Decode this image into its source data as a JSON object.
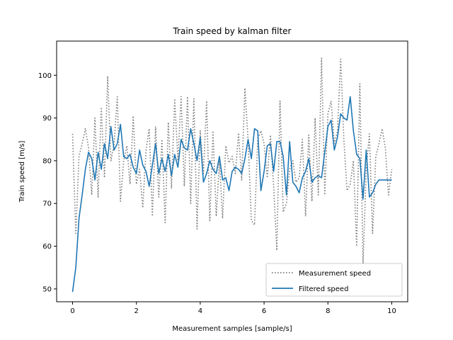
{
  "chart_data": {
    "type": "line",
    "title": "Train speed by kalman filter",
    "xlabel": "Measurement samples [sample/s]",
    "ylabel": "Train speed [m/s]",
    "xlim": [
      -0.5,
      10.5
    ],
    "ylim": [
      47,
      108
    ],
    "xticks": [
      0,
      2,
      4,
      6,
      8,
      10
    ],
    "yticks": [
      50,
      60,
      70,
      80,
      90,
      100
    ],
    "grid": false,
    "legend_position": "lower right",
    "x": [
      0.0,
      0.1,
      0.2,
      0.3,
      0.4,
      0.5,
      0.6,
      0.7,
      0.8,
      0.9,
      1.0,
      1.1,
      1.2,
      1.3,
      1.4,
      1.5,
      1.6,
      1.7,
      1.8,
      1.9,
      2.0,
      2.1,
      2.2,
      2.3,
      2.4,
      2.5,
      2.6,
      2.7,
      2.8,
      2.9,
      3.0,
      3.1,
      3.2,
      3.3,
      3.4,
      3.5,
      3.6,
      3.7,
      3.8,
      3.9,
      4.0,
      4.1,
      4.2,
      4.3,
      4.4,
      4.5,
      4.6,
      4.7,
      4.8,
      4.9,
      5.0,
      5.1,
      5.2,
      5.3,
      5.4,
      5.5,
      5.6,
      5.7,
      5.8,
      5.9,
      6.0,
      6.1,
      6.2,
      6.3,
      6.4,
      6.5,
      6.6,
      6.7,
      6.8,
      6.9,
      7.0,
      7.1,
      7.2,
      7.3,
      7.4,
      7.5,
      7.6,
      7.7,
      7.8,
      7.9,
      8.0,
      8.1,
      8.2,
      8.3,
      8.4,
      8.5,
      8.6,
      8.7,
      8.8,
      8.9,
      9.0,
      9.1,
      9.2,
      9.3,
      9.4,
      9.5,
      9.6,
      9.7,
      9.8,
      9.9,
      10.0
    ],
    "series": [
      {
        "name": "Measurement speed",
        "color": "#808080",
        "style": "dotted",
        "values": [
          86.3,
          63.0,
          81.0,
          84.0,
          87.5,
          83.0,
          72.0,
          90.0,
          71.5,
          92.5,
          76.0,
          99.8,
          80.0,
          84.0,
          95.0,
          70.5,
          80.0,
          83.5,
          74.5,
          90.5,
          74.5,
          78.0,
          69.0,
          82.5,
          87.5,
          67.0,
          88.0,
          71.5,
          85.0,
          65.5,
          89.0,
          73.5,
          94.5,
          80.0,
          95.0,
          74.0,
          95.0,
          70.0,
          94.5,
          64.0,
          87.0,
          77.0,
          94.0,
          66.0,
          87.0,
          67.0,
          80.0,
          66.5,
          83.5,
          79.5,
          81.0,
          77.0,
          86.5,
          75.5,
          97.0,
          85.0,
          66.0,
          65.0,
          85.0,
          87.0,
          84.0,
          76.0,
          86.0,
          74.0,
          59.0,
          94.0,
          68.0,
          70.0,
          78.0,
          80.0,
          75.0,
          76.0,
          85.0,
          67.0,
          86.0,
          70.5,
          90.0,
          72.0,
          104.0,
          72.0,
          91.0,
          94.0,
          84.0,
          87.0,
          103.8,
          85.0,
          73.0,
          74.5,
          80.0,
          60.0,
          98.0,
          56.0,
          78.0,
          86.3,
          63.0,
          81.0,
          84.0,
          87.5,
          83.0,
          72.0,
          78.0
        ]
      },
      {
        "name": "Filtered speed",
        "color": "#1f77b4",
        "style": "solid",
        "values": [
          49.3,
          55.0,
          66.5,
          72.0,
          78.0,
          82.0,
          80.5,
          75.5,
          82.0,
          78.0,
          84.0,
          80.5,
          88.0,
          82.5,
          84.0,
          88.5,
          81.0,
          80.5,
          81.5,
          78.5,
          77.0,
          82.5,
          79.0,
          77.5,
          74.0,
          79.0,
          84.0,
          77.0,
          80.5,
          77.5,
          81.5,
          76.5,
          81.5,
          78.5,
          85.0,
          83.0,
          82.5,
          87.5,
          84.0,
          80.0,
          85.5,
          75.0,
          77.0,
          80.0,
          78.0,
          77.0,
          81.0,
          75.5,
          76.0,
          73.0,
          77.5,
          78.5,
          78.0,
          77.0,
          80.5,
          85.0,
          80.5,
          87.5,
          87.0,
          73.0,
          77.5,
          83.5,
          84.0,
          77.5,
          84.5,
          84.5,
          81.0,
          72.0,
          84.5,
          75.0,
          74.0,
          72.5,
          76.0,
          77.5,
          80.5,
          75.0,
          76.0,
          76.5,
          76.0,
          82.0,
          88.0,
          89.5,
          82.5,
          85.5,
          91.0,
          90.0,
          89.5,
          95.0,
          87.0,
          81.5,
          80.5,
          71.0,
          82.5,
          71.5,
          72.5,
          74.5,
          75.5,
          75.5,
          75.5,
          75.5,
          75.5
        ]
      }
    ]
  }
}
